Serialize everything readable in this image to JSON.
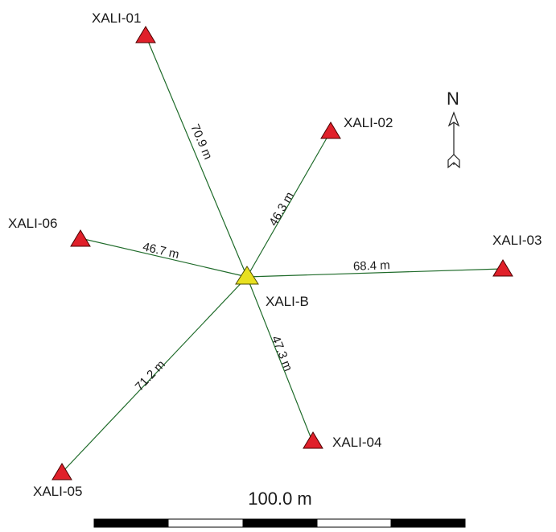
{
  "stations": {
    "center": {
      "label": "XALI-B",
      "color": "#e8e020"
    },
    "outer": [
      {
        "label": "XALI-01",
        "distance": "70.9 m",
        "color": "#e0202a"
      },
      {
        "label": "XALI-02",
        "distance": "46.3 m",
        "color": "#e0202a"
      },
      {
        "label": "XALI-03",
        "distance": "68.4 m",
        "color": "#e0202a"
      },
      {
        "label": "XALI-04",
        "distance": "47.3 m",
        "color": "#e0202a"
      },
      {
        "label": "XALI-05",
        "distance": "71.2 m",
        "color": "#e0202a"
      },
      {
        "label": "XALI-06",
        "distance": "46.7 m",
        "color": "#e0202a"
      }
    ]
  },
  "line_color": "#1f6b2a",
  "north_arrow": {
    "label": "N",
    "icon": "north-arrow-icon"
  },
  "scale_bar": {
    "label": "100.0 m"
  }
}
